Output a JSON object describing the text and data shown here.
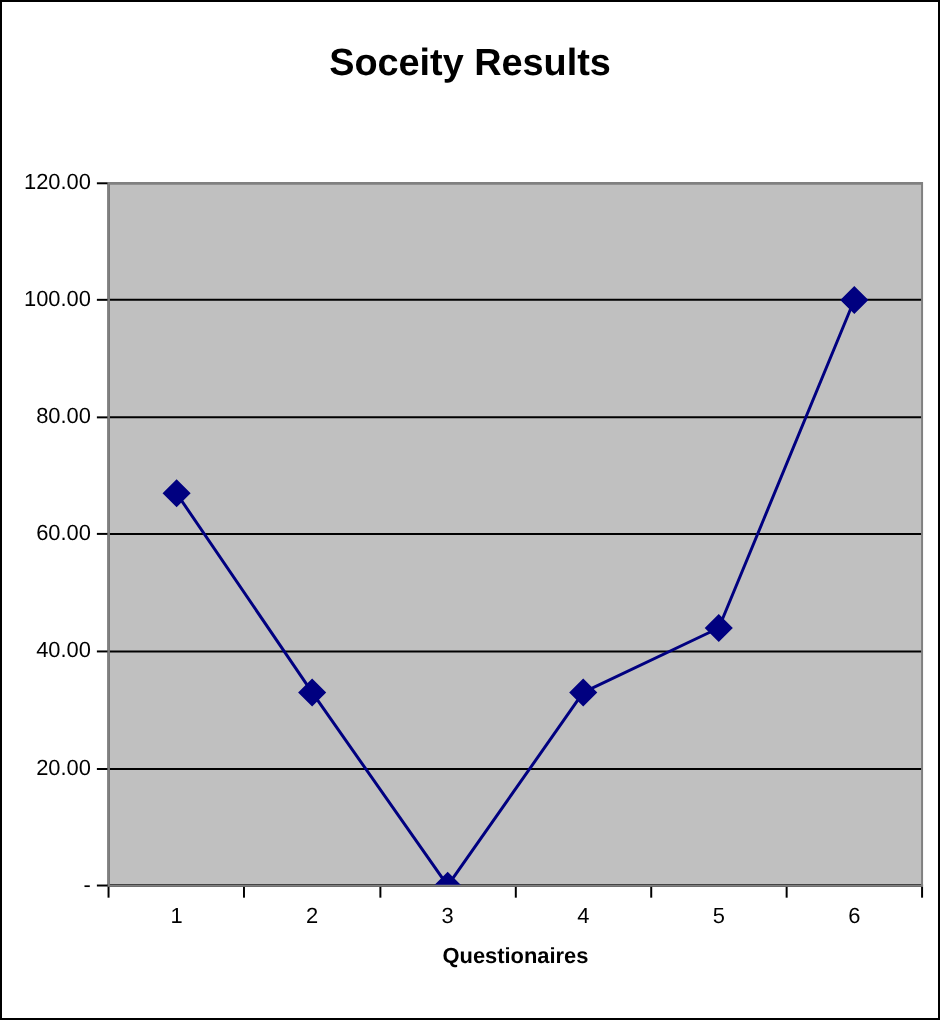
{
  "chart_data": {
    "type": "line",
    "title": "Soceity Results",
    "xlabel": "Questionaires",
    "categories": [
      "1",
      "2",
      "3",
      "4",
      "5",
      "6"
    ],
    "series": [
      {
        "color": "#000080",
        "values": [
          67,
          33,
          0,
          33,
          44,
          100
        ]
      }
    ],
    "ylim": [
      0,
      120
    ],
    "yticks": [
      {
        "value": 0,
        "label": "-"
      },
      {
        "value": 20,
        "label": "20.00"
      },
      {
        "value": 40,
        "label": "40.00"
      },
      {
        "value": 60,
        "label": "60.00"
      },
      {
        "value": 80,
        "label": "80.00"
      },
      {
        "value": 100,
        "label": "100.00"
      },
      {
        "value": 120,
        "label": "120.00"
      }
    ],
    "grid": "y",
    "legend": false,
    "marker": "diamond",
    "line_style": "solid"
  }
}
